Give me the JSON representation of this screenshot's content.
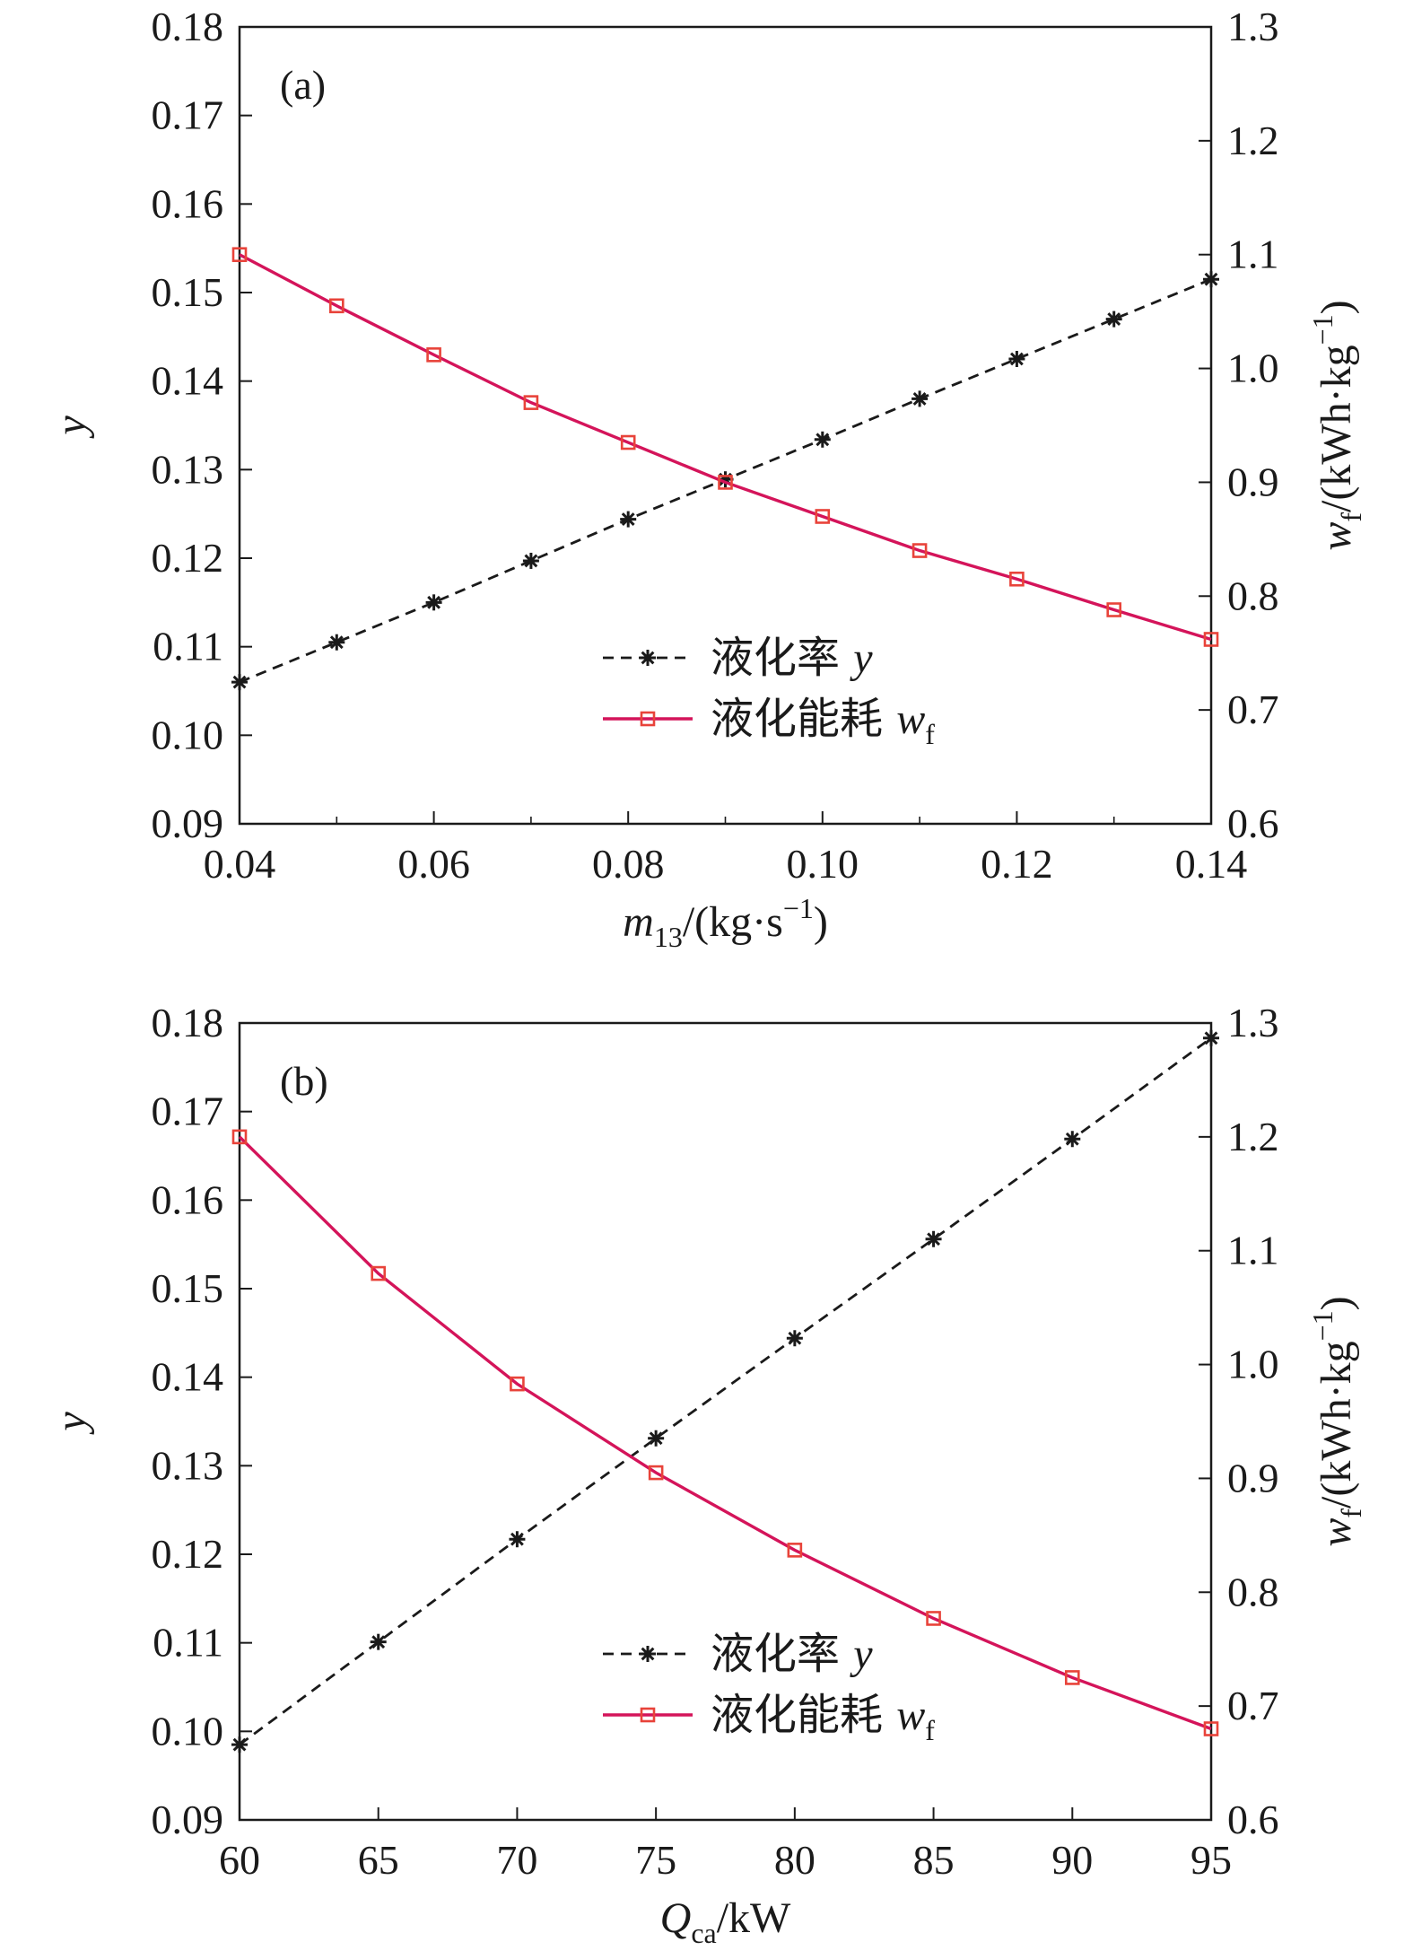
{
  "colors": {
    "series_y": "#1a1a1a",
    "series_wf": "#d4145a",
    "marker_wf": "#e8433a",
    "axis": "#1a1a1a"
  },
  "chart_data": [
    {
      "type": "line",
      "panel_label": "(a)",
      "x": [
        0.04,
        0.05,
        0.06,
        0.07,
        0.08,
        0.09,
        0.1,
        0.11,
        0.12,
        0.13,
        0.14
      ],
      "xlim": [
        0.04,
        0.14
      ],
      "xticks": [
        "0.04",
        "0.06",
        "0.08",
        "0.10",
        "0.12",
        "0.14"
      ],
      "xtick_values": [
        0.04,
        0.06,
        0.08,
        0.1,
        0.12,
        0.14
      ],
      "xlabel": {
        "var": "m",
        "sub": "13",
        "unit": "/(kg·s",
        "sup": "−1",
        "close": ")"
      },
      "ylabel_left": "y",
      "ylim_left": [
        0.09,
        0.18
      ],
      "yticks_left": [
        "0.09",
        "0.10",
        "0.11",
        "0.12",
        "0.13",
        "0.14",
        "0.15",
        "0.16",
        "0.17",
        "0.18"
      ],
      "ylabel_right": {
        "var": "w",
        "sub": "f",
        "unit": "/(kWh·kg",
        "sup": "−1",
        "close": ")"
      },
      "ylim_right": [
        0.6,
        1.3
      ],
      "yticks_right": [
        "0.6",
        "0.7",
        "0.8",
        "0.9",
        "1.0",
        "1.1",
        "1.2",
        "1.3"
      ],
      "series": [
        {
          "name": "液化率 y",
          "label_cjk": "液化率",
          "label_var": "y",
          "label_sub": "",
          "axis": "left",
          "marker": "asterisk",
          "style": "dashed",
          "values": [
            0.106,
            0.1105,
            0.115,
            0.1197,
            0.1244,
            0.1289,
            0.1334,
            0.138,
            0.1425,
            0.147,
            0.1515
          ]
        },
        {
          "name": "液化能耗 wf",
          "label_cjk": "液化能耗",
          "label_var": "w",
          "label_sub": "f",
          "axis": "right",
          "marker": "square",
          "style": "solid",
          "values": [
            1.1,
            1.055,
            1.012,
            0.97,
            0.935,
            0.9,
            0.87,
            0.84,
            0.815,
            0.788,
            0.762
          ]
        }
      ],
      "legend": "center-bottom"
    },
    {
      "type": "line",
      "panel_label": "(b)",
      "x": [
        60,
        65,
        70,
        75,
        80,
        85,
        90,
        95
      ],
      "xlim": [
        60,
        95
      ],
      "xticks": [
        "60",
        "65",
        "70",
        "75",
        "80",
        "85",
        "90",
        "95"
      ],
      "xtick_values": [
        60,
        65,
        70,
        75,
        80,
        85,
        90,
        95
      ],
      "xlabel": {
        "var": "Q",
        "sub": "ca",
        "unit": "/kW",
        "sup": "",
        "close": ""
      },
      "ylabel_left": "y",
      "ylim_left": [
        0.09,
        0.18
      ],
      "yticks_left": [
        "0.09",
        "0.10",
        "0.11",
        "0.12",
        "0.13",
        "0.14",
        "0.15",
        "0.16",
        "0.17",
        "0.18"
      ],
      "ylabel_right": {
        "var": "w",
        "sub": "f",
        "unit": "/(kWh·kg",
        "sup": "−1",
        "close": ")"
      },
      "ylim_right": [
        0.6,
        1.3
      ],
      "yticks_right": [
        "0.6",
        "0.7",
        "0.8",
        "0.9",
        "1.0",
        "1.1",
        "1.2",
        "1.3"
      ],
      "series": [
        {
          "name": "液化率 y",
          "label_cjk": "液化率",
          "label_var": "y",
          "label_sub": "",
          "axis": "left",
          "marker": "asterisk",
          "style": "dashed",
          "values": [
            0.0985,
            0.1101,
            0.1217,
            0.1331,
            0.1444,
            0.1556,
            0.1669,
            0.1783
          ]
        },
        {
          "name": "液化能耗 wf",
          "label_cjk": "液化能耗",
          "label_var": "w",
          "label_sub": "f",
          "axis": "right",
          "marker": "square",
          "style": "solid",
          "values": [
            1.2,
            1.08,
            0.983,
            0.905,
            0.837,
            0.777,
            0.725,
            0.68
          ]
        }
      ],
      "legend": "center-bottom"
    }
  ]
}
